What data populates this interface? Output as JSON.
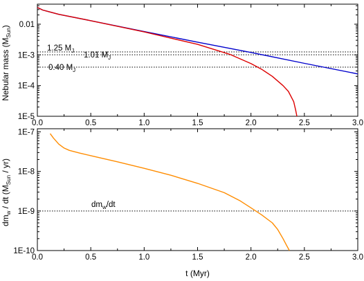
{
  "chart_data": [
    {
      "type": "line",
      "panel": "top",
      "ylabel": "Nebular mass (M",
      "ylabel_sub": "Sun",
      "ylabel_end": ")",
      "yscale": "log",
      "xlim": [
        0.0,
        3.0
      ],
      "ylim": [
        1e-05,
        0.045
      ],
      "xticks": [
        0.0,
        0.5,
        1.0,
        1.5,
        2.0,
        2.5,
        3.0
      ],
      "xtick_labels": [
        "0.0",
        "0.5",
        "1.0",
        "1.5",
        "2.0",
        "2.5",
        "3.0"
      ],
      "yticks": [
        0.01,
        0.001,
        0.0001,
        1e-05
      ],
      "ytick_labels": [
        "0.01",
        "1E-3",
        "1E-4",
        "1E-5"
      ],
      "series": [
        {
          "color": "#0000cc",
          "x": [
            0.0,
            0.05,
            0.1,
            0.2,
            0.5,
            1.0,
            1.5,
            2.0,
            2.5,
            3.0
          ],
          "y": [
            0.035,
            0.029,
            0.026,
            0.021,
            0.013,
            0.0058,
            0.0026,
            0.0012,
            0.00053,
            0.00024
          ]
        },
        {
          "color": "#dd0000",
          "x": [
            0.0,
            0.05,
            0.1,
            0.2,
            0.5,
            1.0,
            1.5,
            1.8,
            2.0,
            2.1,
            2.2,
            2.3,
            2.35,
            2.4,
            2.42,
            2.43
          ],
          "y": [
            0.035,
            0.029,
            0.026,
            0.021,
            0.013,
            0.0056,
            0.0022,
            0.00105,
            0.00052,
            0.00034,
            0.0002,
            0.0001,
            6.5e-05,
            3e-05,
            1.5e-05,
            1e-05
          ]
        }
      ],
      "hlines": [
        {
          "y": 0.00125,
          "label": "1.25 M",
          "sub": "J"
        },
        {
          "y": 0.00101,
          "label": "1.01 M",
          "sub": "J"
        },
        {
          "y": 0.0004,
          "label": "0.40 M",
          "sub": "J"
        }
      ]
    },
    {
      "type": "line",
      "panel": "bottom",
      "xlabel": "t (Myr)",
      "ylabel": "dm",
      "ylabel_sub": "w",
      "ylabel_mid": "/ dt (M",
      "ylabel_sub2": "Sun",
      "ylabel_end": " / yr)",
      "yscale": "log",
      "xlim": [
        0.0,
        3.0
      ],
      "ylim": [
        1e-10,
        1.2e-07
      ],
      "xticks": [
        0.0,
        0.5,
        1.0,
        1.5,
        2.0,
        2.5,
        3.0
      ],
      "xtick_labels": [
        "0.0",
        "0.5",
        "1.0",
        "1.5",
        "2.0",
        "2.5",
        "3.0"
      ],
      "yticks": [
        1e-07,
        1e-08,
        1e-09,
        1e-10
      ],
      "ytick_labels": [
        "1E-7",
        "1E-8",
        "1E-9",
        "1E-10"
      ],
      "series": [
        {
          "color": "#ff8c00",
          "x": [
            0.12,
            0.15,
            0.2,
            0.25,
            0.3,
            0.4,
            0.5,
            0.75,
            1.0,
            1.25,
            1.5,
            1.75,
            1.9,
            2.0,
            2.1,
            2.2,
            2.25,
            2.3,
            2.33,
            2.36
          ],
          "y": [
            9e-08,
            7e-08,
            4.9e-08,
            3.9e-08,
            3.4e-08,
            2.9e-08,
            2.5e-08,
            1.75e-08,
            1.2e-08,
            8e-09,
            5e-09,
            2.9e-09,
            1.8e-09,
            1.2e-09,
            8e-10,
            5e-10,
            3.4e-10,
            2e-10,
            1.4e-10,
            1e-10
          ]
        }
      ],
      "hlines": [
        {
          "y": 1e-09,
          "label": "dm",
          "sub": "w",
          "label_end": "/dt"
        }
      ]
    }
  ]
}
